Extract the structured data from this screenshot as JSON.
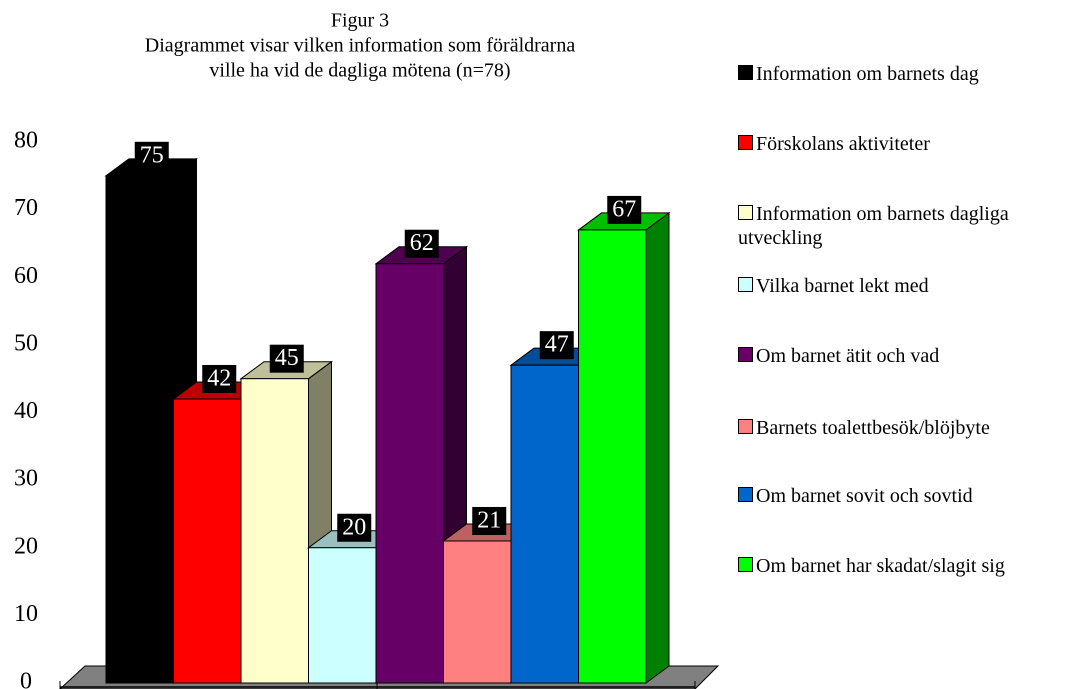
{
  "chart_data": {
    "type": "bar3d",
    "title": "Figur 3",
    "subtitle": [
      "Diagrammet visar vilken information som föräldrarna",
      "ville ha vid de dagliga mötena (n=78)"
    ],
    "series": [
      {
        "name": "Information om barnets dag",
        "color": "#000000",
        "values": [
          75
        ]
      },
      {
        "name": "Förskolans aktiviteter",
        "color": "#ff0000",
        "values": [
          42
        ]
      },
      {
        "name": "Information om barnets dagliga utveckling",
        "color": "#ffffcc",
        "values": [
          45
        ]
      },
      {
        "name": "Vilka barnet lekt med",
        "color": "#ccffff",
        "values": [
          20
        ]
      },
      {
        "name": "Om barnet ätit och vad",
        "color": "#660066",
        "values": [
          62
        ]
      },
      {
        "name": "Barnets toalettbesök/blöjbyte",
        "color": "#ff8080",
        "values": [
          21
        ]
      },
      {
        "name": "Om barnet sovit och sovtid",
        "color": "#0066cc",
        "values": [
          47
        ]
      },
      {
        "name": "Om barnet har skadat/slagit sig",
        "color": "#00ff00",
        "values": [
          67
        ]
      }
    ],
    "ylim": [
      0,
      80
    ],
    "yticks": [
      0,
      10,
      20,
      30,
      40,
      50,
      60,
      70,
      80
    ],
    "grid": false,
    "legend": "right"
  }
}
